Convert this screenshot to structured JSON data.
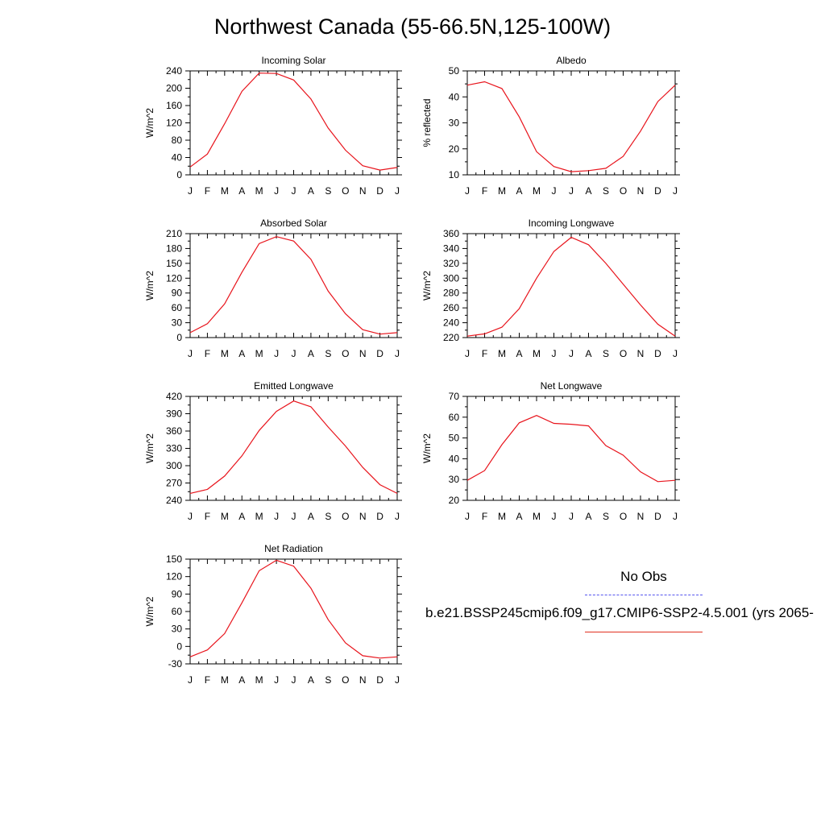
{
  "title": "Northwest Canada (55-66.5N,125-100W)",
  "months": [
    "J",
    "F",
    "M",
    "A",
    "M",
    "J",
    "J",
    "A",
    "S",
    "O",
    "N",
    "D",
    "J"
  ],
  "series_color": "#e8141c",
  "legend": {
    "obs_label": "No Obs",
    "obs_color": "#5555ee",
    "model_label": "b.e21.BSSP245cmip6.f09_g17.CMIP6-SSP2-4.5.001 (yrs 2065-",
    "model_color": "#e03020"
  },
  "chart_data": [
    {
      "type": "line",
      "title": "Incoming Solar",
      "ylabel": "W/m^2",
      "ylim": [
        0,
        240
      ],
      "yticks": [
        0,
        40,
        80,
        120,
        160,
        200,
        240
      ],
      "categories": [
        "J",
        "F",
        "M",
        "A",
        "M",
        "J",
        "J",
        "A",
        "S",
        "O",
        "N",
        "D",
        "J"
      ],
      "values": [
        18,
        48,
        118,
        193,
        235,
        234,
        219,
        175,
        108,
        57,
        21,
        11,
        17
      ]
    },
    {
      "type": "line",
      "title": "Albedo",
      "ylabel": "% reflected",
      "ylim": [
        10,
        50
      ],
      "yticks": [
        10,
        20,
        30,
        40,
        50
      ],
      "categories": [
        "J",
        "F",
        "M",
        "A",
        "M",
        "J",
        "J",
        "A",
        "S",
        "O",
        "N",
        "D",
        "J"
      ],
      "values": [
        44.5,
        45.8,
        43.2,
        32.3,
        18.9,
        13.2,
        11.2,
        11.6,
        12.5,
        17.1,
        26.8,
        38.2,
        44.5
      ]
    },
    {
      "type": "line",
      "title": "Absorbed Solar",
      "ylabel": "W/m^2",
      "ylim": [
        0,
        210
      ],
      "yticks": [
        0,
        30,
        60,
        90,
        120,
        150,
        180,
        210
      ],
      "categories": [
        "J",
        "F",
        "M",
        "A",
        "M",
        "J",
        "J",
        "A",
        "S",
        "O",
        "N",
        "D",
        "J"
      ],
      "values": [
        10,
        28,
        68,
        132,
        190,
        204,
        195,
        158,
        94,
        48,
        16,
        7,
        10
      ]
    },
    {
      "type": "line",
      "title": "Incoming Longwave",
      "ylabel": "W/m^2",
      "ylim": [
        220,
        360
      ],
      "yticks": [
        220,
        240,
        260,
        280,
        300,
        320,
        340,
        360
      ],
      "categories": [
        "J",
        "F",
        "M",
        "A",
        "M",
        "J",
        "J",
        "A",
        "S",
        "O",
        "N",
        "D",
        "J"
      ],
      "values": [
        222,
        225,
        234,
        259,
        300,
        336,
        355,
        345,
        320,
        292,
        264,
        238,
        222
      ]
    },
    {
      "type": "line",
      "title": "Emitted Longwave",
      "ylabel": "W/m^2",
      "ylim": [
        240,
        420
      ],
      "yticks": [
        240,
        270,
        300,
        330,
        360,
        390,
        420
      ],
      "categories": [
        "J",
        "F",
        "M",
        "A",
        "M",
        "J",
        "J",
        "A",
        "S",
        "O",
        "N",
        "D",
        "J"
      ],
      "values": [
        252,
        259,
        282,
        317,
        361,
        394,
        412,
        402,
        367,
        334,
        297,
        267,
        252
      ]
    },
    {
      "type": "line",
      "title": "Net Longwave",
      "ylabel": "W/m^2",
      "ylim": [
        20,
        70
      ],
      "yticks": [
        20,
        30,
        40,
        50,
        60,
        70
      ],
      "categories": [
        "J",
        "F",
        "M",
        "A",
        "M",
        "J",
        "J",
        "A",
        "S",
        "O",
        "N",
        "D",
        "J"
      ],
      "values": [
        29.6,
        34.3,
        46.8,
        57.3,
        60.8,
        57.0,
        56.6,
        55.8,
        46.3,
        41.7,
        33.7,
        29.0,
        29.6
      ]
    },
    {
      "type": "line",
      "title": "Net Radiation",
      "ylabel": "W/m^2",
      "ylim": [
        -30,
        150
      ],
      "yticks": [
        -30,
        0,
        30,
        60,
        90,
        120,
        150
      ],
      "categories": [
        "J",
        "F",
        "M",
        "A",
        "M",
        "J",
        "J",
        "A",
        "S",
        "O",
        "N",
        "D",
        "J"
      ],
      "values": [
        -18,
        -6,
        22,
        75,
        130,
        148,
        138,
        100,
        46,
        6,
        -16,
        -20,
        -18
      ]
    }
  ]
}
